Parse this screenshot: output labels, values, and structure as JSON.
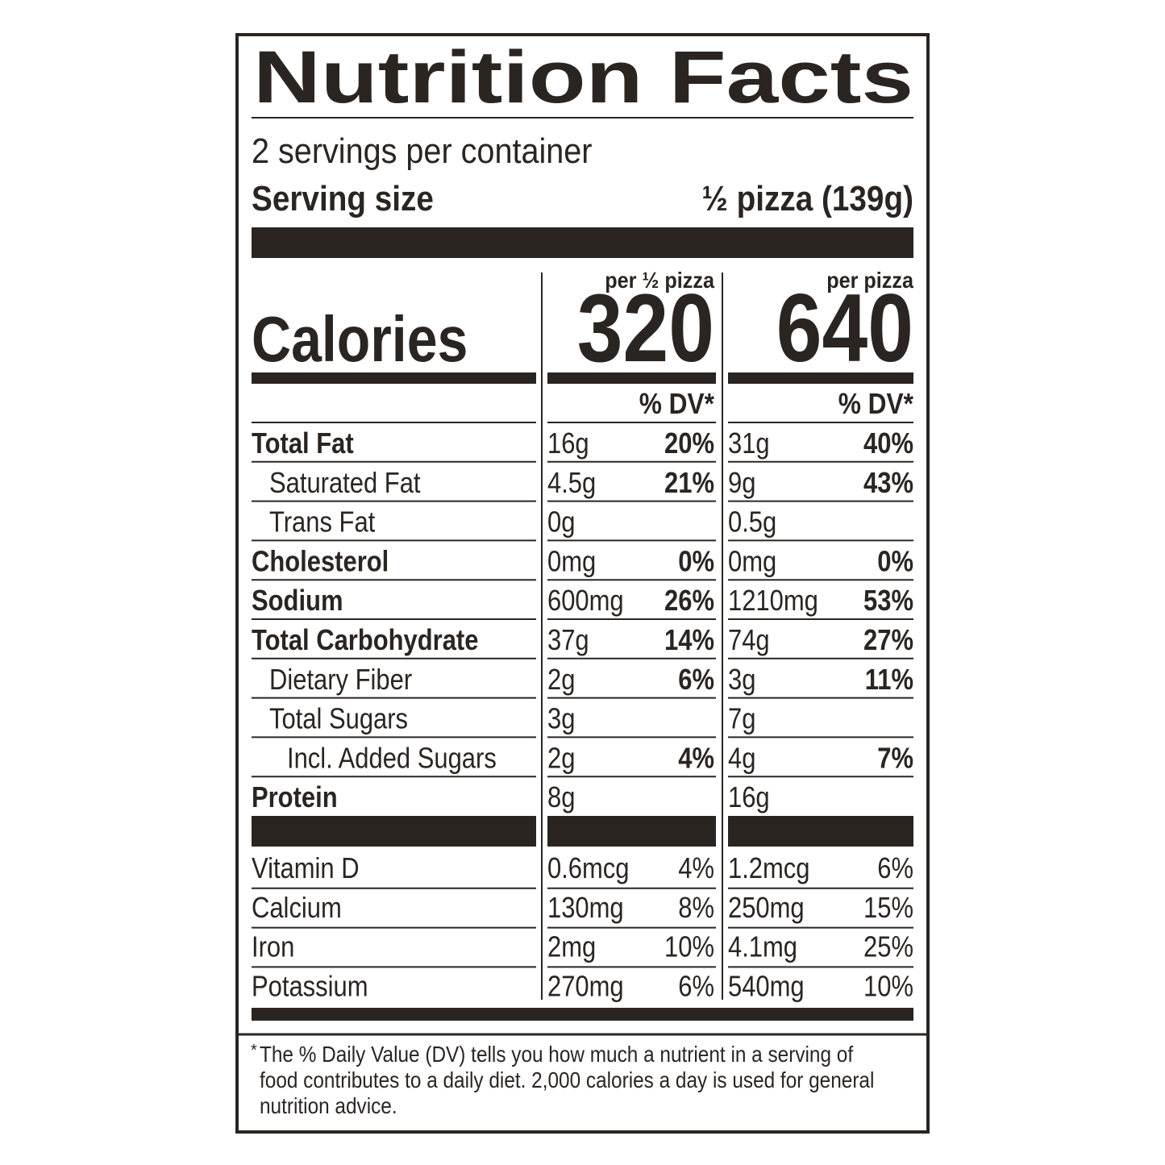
{
  "title": "Nutrition Facts",
  "servings": "2 servings per container",
  "serving_size": {
    "label": "Serving size",
    "value": "½ pizza (139g)"
  },
  "calories_label": "Calories",
  "columns": [
    {
      "header": "per ½ pizza",
      "calories": "320",
      "dv_header": "% DV*"
    },
    {
      "header": "per pizza",
      "calories": "640",
      "dv_header": "% DV*"
    }
  ],
  "nutrients": [
    {
      "name": "Total Fat",
      "bold": true,
      "indent": 0,
      "amounts": [
        [
          "16g",
          "20%"
        ],
        [
          "31g",
          "40%"
        ]
      ]
    },
    {
      "name": "Saturated Fat",
      "bold": false,
      "indent": 1,
      "amounts": [
        [
          "4.5g",
          "21%"
        ],
        [
          "9g",
          "43%"
        ]
      ]
    },
    {
      "name": "Trans Fat",
      "bold": false,
      "indent": 1,
      "amounts": [
        [
          "0g",
          null
        ],
        [
          "0.5g",
          null
        ]
      ]
    },
    {
      "name": "Cholesterol",
      "bold": true,
      "indent": 0,
      "amounts": [
        [
          "0mg",
          "0%"
        ],
        [
          "0mg",
          "0%"
        ]
      ]
    },
    {
      "name": "Sodium",
      "bold": true,
      "indent": 0,
      "amounts": [
        [
          "600mg",
          "26%"
        ],
        [
          "1210mg",
          "53%"
        ]
      ]
    },
    {
      "name": "Total Carbohydrate",
      "bold": true,
      "indent": 0,
      "amounts": [
        [
          "37g",
          "14%"
        ],
        [
          "74g",
          "27%"
        ]
      ]
    },
    {
      "name": "Dietary Fiber",
      "bold": false,
      "indent": 1,
      "amounts": [
        [
          "2g",
          "6%"
        ],
        [
          "3g",
          "11%"
        ]
      ]
    },
    {
      "name": "Total Sugars",
      "bold": false,
      "indent": 1,
      "amounts": [
        [
          "3g",
          null
        ],
        [
          "7g",
          null
        ]
      ]
    },
    {
      "name": "Incl. Added Sugars",
      "bold": false,
      "indent": 2,
      "amounts": [
        [
          "2g",
          "4%"
        ],
        [
          "4g",
          "7%"
        ]
      ]
    },
    {
      "name": "Protein",
      "bold": true,
      "indent": 0,
      "amounts": [
        [
          "8g",
          null
        ],
        [
          "16g",
          null
        ]
      ]
    }
  ],
  "vitamins": [
    {
      "name": "Vitamin D",
      "amounts": [
        [
          "0.6mcg",
          "4%"
        ],
        [
          "1.2mcg",
          "6%"
        ]
      ]
    },
    {
      "name": "Calcium",
      "amounts": [
        [
          "130mg",
          "8%"
        ],
        [
          "250mg",
          "15%"
        ]
      ]
    },
    {
      "name": "Iron",
      "amounts": [
        [
          "2mg",
          "10%"
        ],
        [
          "4.1mg",
          "25%"
        ]
      ]
    },
    {
      "name": "Potassium",
      "amounts": [
        [
          "270mg",
          "6%"
        ],
        [
          "540mg",
          "10%"
        ]
      ]
    }
  ],
  "footnote": {
    "mark": "*",
    "text": "The % Daily Value (DV) tells you how much a nutrient in a serving of food contributes to a daily diet. 2,000 calories a day is used for general nutrition advice."
  }
}
